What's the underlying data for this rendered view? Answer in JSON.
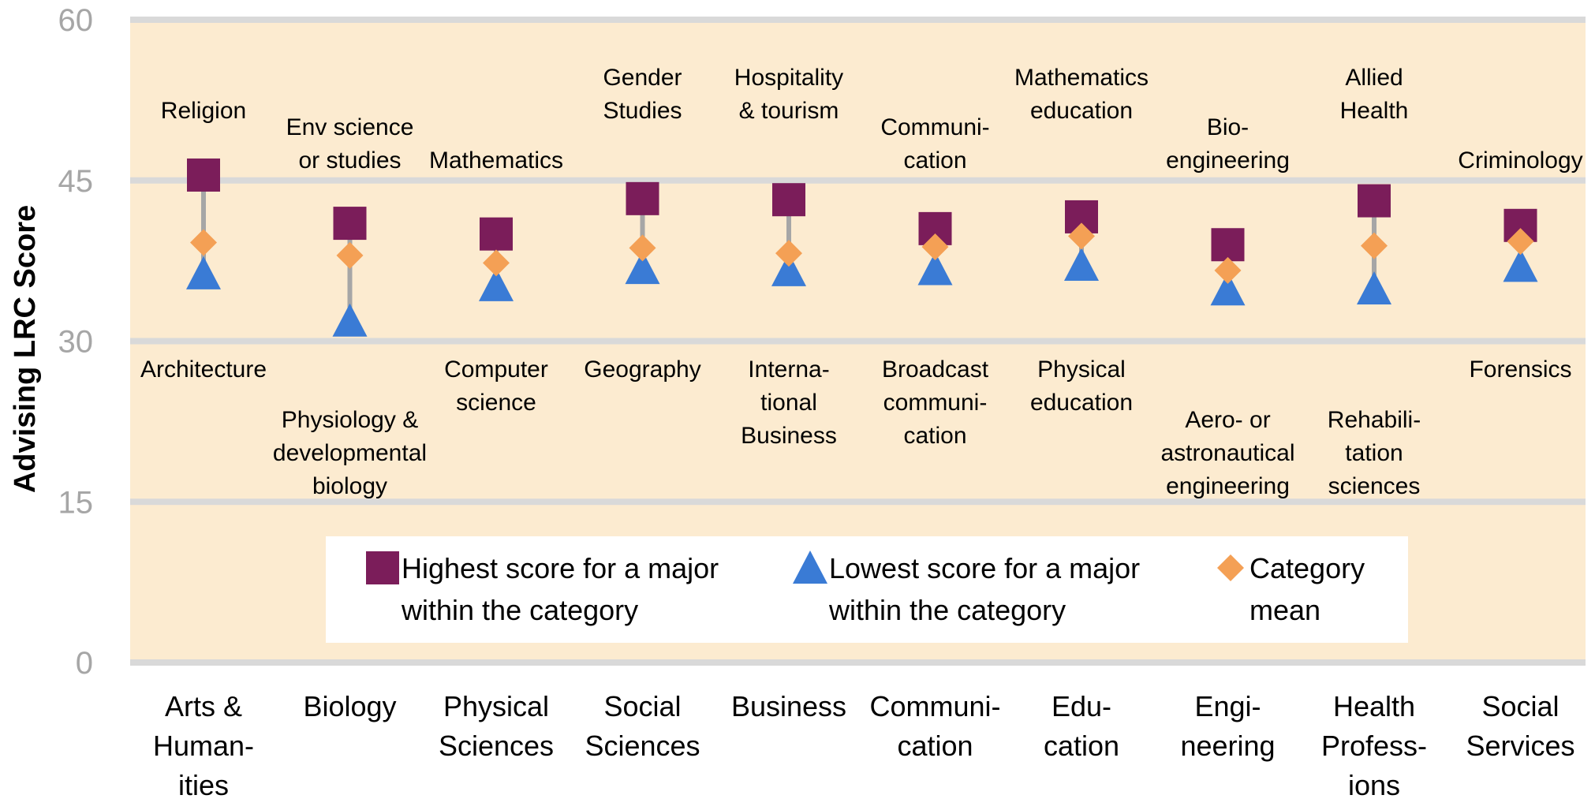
{
  "chart_data": {
    "type": "scatter",
    "ylabel": "Advising LRC Score",
    "ylim": [
      0,
      60
    ],
    "yticks": [
      0,
      15,
      30,
      45,
      60
    ],
    "grid": true,
    "categories": [
      "Arts & Human-ities",
      "Biology",
      "Physical Sciences",
      "Social Sciences",
      "Business",
      "Communi-cation",
      "Edu-cation",
      "Engi-neering",
      "Health Profess-ions",
      "Social Services"
    ],
    "category_label_lines": [
      [
        "Arts &",
        "Human-",
        "ities"
      ],
      [
        "Biology"
      ],
      [
        "Physical",
        "Sciences"
      ],
      [
        "Social",
        "Sciences"
      ],
      [
        "Business"
      ],
      [
        "Communi-",
        "cation"
      ],
      [
        "Edu-",
        "cation"
      ],
      [
        "Engi-",
        "neering"
      ],
      [
        "Health",
        "Profess-",
        "ions"
      ],
      [
        "Social",
        "Services"
      ]
    ],
    "series": [
      {
        "name": "Highest score for a major within the category",
        "marker": "square",
        "color": "#7b1d5a",
        "values": [
          45.5,
          41.0,
          40.0,
          43.3,
          43.2,
          40.5,
          41.6,
          39.0,
          43.1,
          40.8
        ]
      },
      {
        "name": "Lowest score for a major within the category",
        "marker": "triangle",
        "color": "#3a7bd5",
        "values": [
          36.3,
          31.9,
          35.2,
          36.8,
          36.6,
          36.7,
          37.1,
          34.8,
          34.9,
          37.0
        ]
      },
      {
        "name": "Category mean",
        "marker": "diamond",
        "color": "#f4a055",
        "values": [
          39.2,
          38.0,
          37.3,
          38.7,
          38.2,
          38.8,
          39.8,
          36.6,
          38.9,
          39.3
        ]
      }
    ],
    "highest_major_labels": [
      [
        "Religion"
      ],
      [
        "Env science",
        "or studies"
      ],
      [
        "Mathematics"
      ],
      [
        "Gender",
        "Studies"
      ],
      [
        "Hospitality",
        "& tourism"
      ],
      [
        "Communi-",
        "cation"
      ],
      [
        "Mathematics",
        "education"
      ],
      [
        "Bio-",
        "engineering"
      ],
      [
        "Allied",
        "Health"
      ],
      [
        "Criminology"
      ]
    ],
    "lowest_major_labels": [
      [
        "Architecture"
      ],
      [
        "Physiology &",
        "developmental",
        "biology"
      ],
      [
        "Computer",
        "science"
      ],
      [
        "Geography"
      ],
      [
        "Interna-",
        "tional",
        "Business"
      ],
      [
        "Broadcast",
        "communi-",
        "cation"
      ],
      [
        "Physical",
        "education"
      ],
      [
        "Aero- or",
        "astronautical",
        "engineering"
      ],
      [
        "Rehabili-",
        "tation",
        "sciences"
      ],
      [
        "Forensics"
      ]
    ],
    "legend": {
      "placement": "bottom-center",
      "entries": [
        [
          "Highest score for a major",
          "within the category"
        ],
        [
          "Lowest score for a major",
          "within the category"
        ],
        [
          "Category",
          "mean"
        ]
      ]
    },
    "colors": {
      "plot_background": "#fcebd0",
      "gridline": "#d9d9d9",
      "connector": "#a6a6a6"
    }
  }
}
